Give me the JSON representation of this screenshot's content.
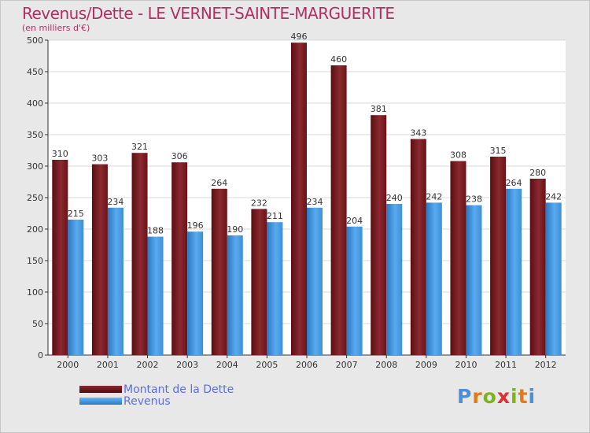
{
  "title": "Revenus/Dette - LE VERNET-SAINTE-MARGUERITE",
  "subtitle": "(en milliers d'€)",
  "colors": {
    "dette": "#6b1218",
    "revenus": "#3d8fd6",
    "background": "#e8e8e8",
    "title": "#b03060",
    "legend_text": "#5b6ee1"
  },
  "chart_data": {
    "type": "bar",
    "categories": [
      "2000",
      "2001",
      "2002",
      "2003",
      "2004",
      "2005",
      "2006",
      "2007",
      "2008",
      "2009",
      "2010",
      "2011",
      "2012"
    ],
    "series": [
      {
        "name": "Montant de la Dette",
        "values": [
          310,
          303,
          321,
          306,
          264,
          232,
          496,
          460,
          381,
          343,
          308,
          315,
          280
        ]
      },
      {
        "name": "Revenus",
        "values": [
          215,
          234,
          188,
          196,
          190,
          211,
          234,
          204,
          240,
          242,
          238,
          264,
          242
        ]
      }
    ],
    "ylim": [
      0,
      500
    ],
    "yticks": [
      0,
      50,
      100,
      150,
      200,
      250,
      300,
      350,
      400,
      450,
      500
    ],
    "grid": true,
    "legend_position": "bottom-left"
  },
  "legend": {
    "items": [
      "Montant de la Dette",
      "Revenus"
    ]
  },
  "logo": {
    "letters": [
      "P",
      "r",
      "o",
      "x",
      "i",
      "t",
      "i"
    ],
    "colors": [
      "#4a90d9",
      "#e07b1a",
      "#7cb518",
      "#e03030",
      "#7cb518",
      "#e07b1a",
      "#4a90d9"
    ]
  }
}
